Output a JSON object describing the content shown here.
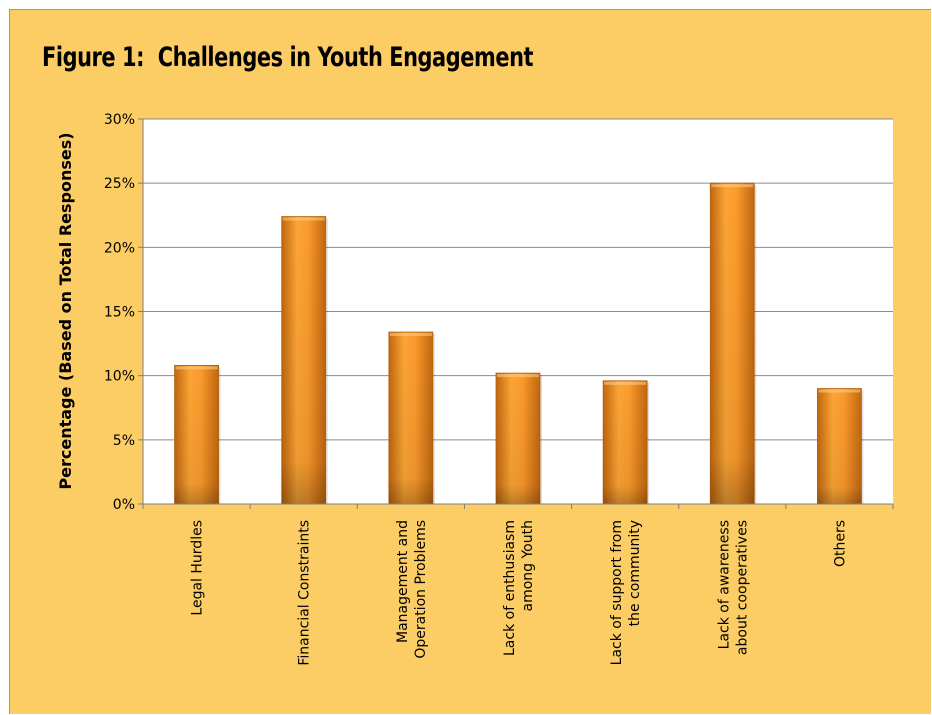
{
  "chart_data": {
    "type": "bar",
    "title": "Figure 1:  Challenges in Youth Engagement",
    "ylabel": "Percentage (Based on Total Responses)",
    "xlabel": "",
    "ylim": [
      0,
      30
    ],
    "yticks": [
      "0%",
      "5%",
      "10%",
      "15%",
      "20%",
      "25%",
      "30%"
    ],
    "grid": true,
    "categories": [
      [
        "Legal Hurdles"
      ],
      [
        "Financial Constraints"
      ],
      [
        "Management and",
        "Operation Problems"
      ],
      [
        "Lack of enthusiasm",
        "among Youth"
      ],
      [
        "Lack of support from",
        "the community"
      ],
      [
        "Lack of awareness",
        "about cooperatives"
      ],
      [
        "Others"
      ]
    ],
    "values": [
      10.8,
      22.4,
      13.4,
      10.2,
      9.6,
      25.0,
      9.0
    ],
    "colors": {
      "background": "#fbcd64",
      "plot_area": "#ffffff",
      "bar_light": "#fca233",
      "bar_dark": "#c86e12",
      "grid": "#8c8c8c"
    }
  }
}
